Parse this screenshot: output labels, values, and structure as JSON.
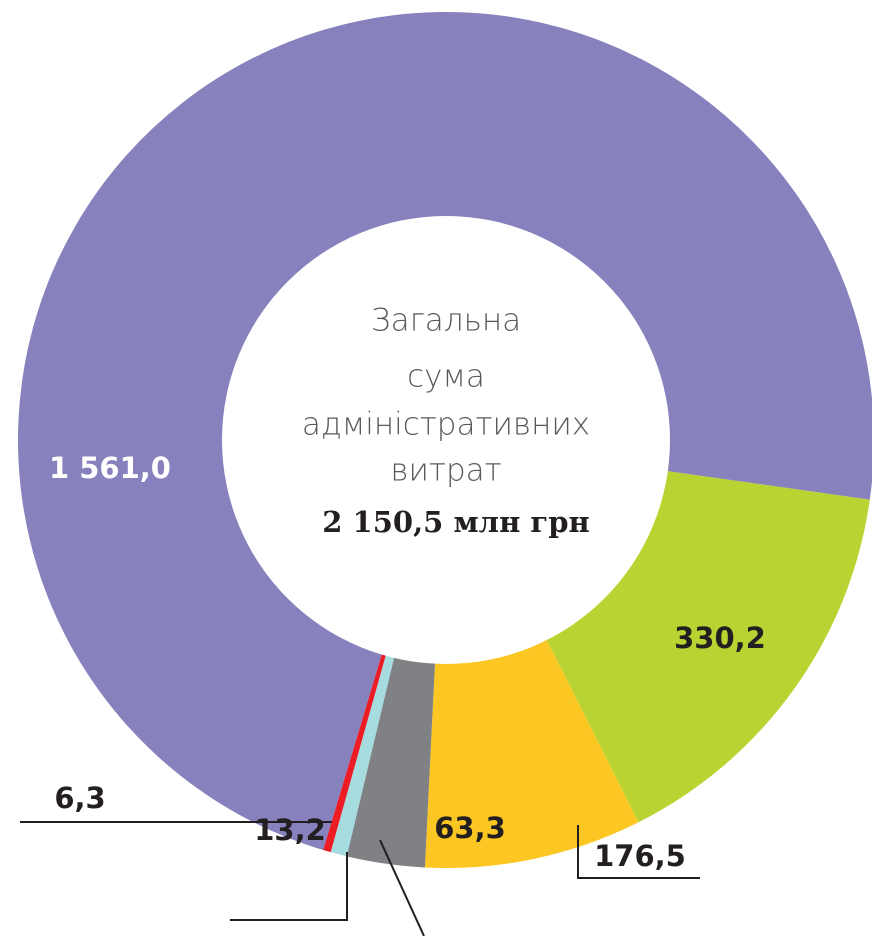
{
  "chart_data": {
    "type": "donut",
    "center_title": [
      "Загальна",
      "сума",
      "адміністративних",
      "витрат"
    ],
    "center_value": "2 150,5 млн грн",
    "values": [
      330.2,
      176.5,
      63.3,
      13.2,
      6.3,
      1561.0
    ],
    "value_labels": [
      "330,2",
      "176,5",
      "63,3",
      "13,2",
      "6,3",
      "1 561,0"
    ],
    "colors": [
      "#b9d432",
      "#fcc722",
      "#808184",
      "#a6dbe0",
      "#ec1c24",
      "#8782bd"
    ]
  }
}
